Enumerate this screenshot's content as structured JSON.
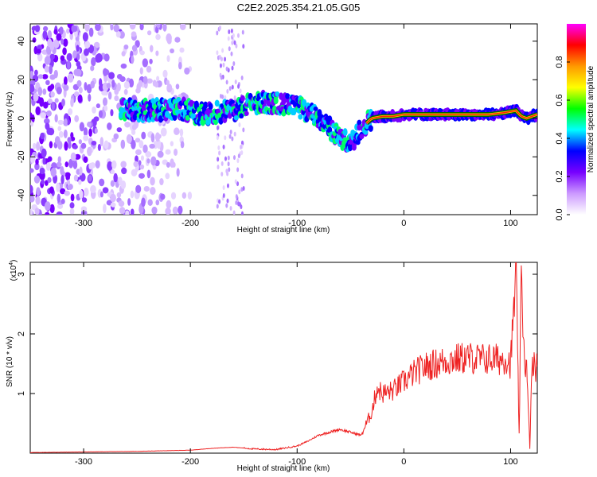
{
  "title": "C2E2.2025.354.21.05.G05",
  "chart_data": [
    {
      "type": "heatmap",
      "xlabel": "Height of straight line (km)",
      "ylabel": "Frequency (Hz)",
      "xlim": [
        -350,
        125
      ],
      "ylim": [
        -50,
        49
      ],
      "xticks": [
        -300,
        -200,
        -100,
        0,
        100
      ],
      "yticks": [
        -40,
        -20,
        0,
        20,
        40
      ],
      "colorbar": {
        "label": "Normalized spectral amplitude",
        "range": [
          0,
          1
        ],
        "ticks": [
          "0.0",
          "0.2",
          "0.4",
          "0.6",
          "0.8"
        ],
        "colors": [
          "#ffffff",
          "#cc99ff",
          "#7700ff",
          "#0000ff",
          "#00ffff",
          "#00ff00",
          "#ffff00",
          "#ff9900",
          "#ff0000",
          "#ff00ff"
        ]
      },
      "ridge": {
        "x": [
          -265,
          -240,
          -210,
          -190,
          -160,
          -140,
          -120,
          -100,
          -90,
          -80,
          -70,
          -60,
          -50,
          -40,
          -30,
          -20,
          -10,
          0,
          20,
          50,
          80,
          95,
          105,
          110,
          115,
          125
        ],
        "y": [
          5,
          4,
          5,
          2,
          4,
          8,
          8,
          6,
          3,
          0,
          -5,
          -10,
          -14,
          -5,
          0,
          1,
          1,
          2,
          2,
          2,
          2,
          3,
          4,
          1,
          0,
          2
        ]
      },
      "noise_region": {
        "x_range": [
          -350,
          -200
        ],
        "y_range": [
          -50,
          49
        ]
      }
    },
    {
      "type": "line",
      "xlabel": "Height of straight line (km)",
      "ylabel": "SNR (10 * v/v)",
      "multiplier_label": "(x10",
      "multiplier_exponent": "4",
      "multiplier_close": ")",
      "xlim": [
        -350,
        125
      ],
      "ylim": [
        0,
        3.2
      ],
      "xticks": [
        -300,
        -200,
        -100,
        0,
        100
      ],
      "yticks": [
        1,
        2,
        3
      ],
      "line_color": "#ee2222",
      "series": [
        {
          "x": [
            -350,
            -300,
            -250,
            -200,
            -180,
            -160,
            -140,
            -120,
            -100,
            -90,
            -80,
            -70,
            -60,
            -50,
            -40,
            -30,
            -25,
            -20,
            -10,
            0,
            10,
            20,
            30,
            40,
            50,
            60,
            70,
            80,
            90,
            95,
            100,
            103,
            105,
            108,
            110,
            113,
            115,
            118,
            120,
            125
          ],
          "values": [
            0.01,
            0.02,
            0.03,
            0.05,
            0.08,
            0.1,
            0.07,
            0.06,
            0.12,
            0.2,
            0.3,
            0.35,
            0.4,
            0.35,
            0.3,
            0.7,
            1.1,
            1.0,
            1.05,
            1.2,
            1.35,
            1.45,
            1.5,
            1.55,
            1.58,
            1.6,
            1.58,
            1.58,
            1.57,
            1.6,
            1.5,
            2.4,
            3.1,
            0.3,
            2.9,
            1.6,
            1.4,
            0.1,
            1.45,
            1.45
          ]
        }
      ]
    }
  ]
}
